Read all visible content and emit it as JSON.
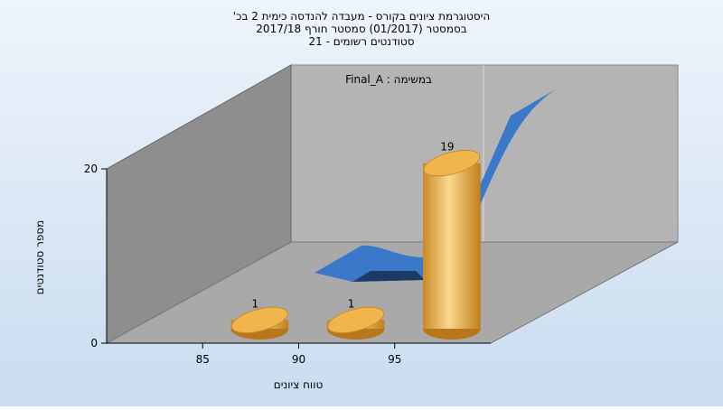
{
  "chart_data": {
    "type": "histogram",
    "title_lines": [
      "היסטוגרמת ציונים בקורס - מעבדה להנדסה כימית 2 בכ'",
      "בסמסטר  (01/2017)  סמסטר חורף 2017/18",
      "סטודנטים רשומים - 21"
    ],
    "series_label": "במשימה : Final_A",
    "x_label": "טווח ציונים",
    "y_label": "מספר סטודנטים",
    "bins": [
      85,
      90,
      95,
      100
    ],
    "values": [
      1,
      1,
      19
    ],
    "color": "#e8a53c",
    "xlim": [
      80,
      100
    ],
    "xticks": [
      85,
      90,
      95
    ],
    "ylim": [
      0,
      20
    ],
    "yticks": [
      0,
      20
    ]
  }
}
